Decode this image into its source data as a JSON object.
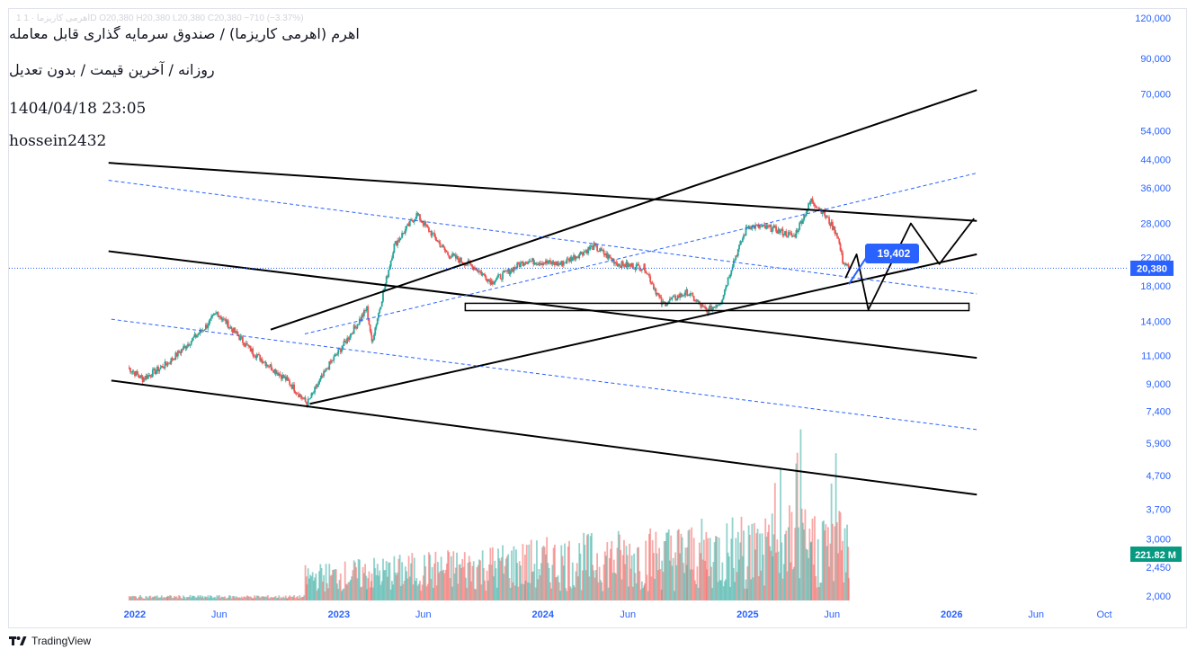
{
  "header": {
    "ticker_line": "1 اهرمی کاریزما · 1D  O20,380  H20,380  L20,380  C20,380  −710 (−3.37%)",
    "title_line1": "اهرم (اهرمی کاریزما) / صندوق سرمایه گذاری قابل معامله",
    "title_line2": "روزانه / آخرین قیمت / بدون تعدیل",
    "timestamp": "1404/04/18 23:05",
    "author": "hossein2432"
  },
  "footer": {
    "brand": "TradingView",
    "logo_icon": "tradingview-logo-icon"
  },
  "colors": {
    "axis_text": "#2962ff",
    "up_candle": "#26a69a",
    "down_candle": "#ef5350",
    "current_price_line": "#2962ff",
    "callout_bg": "#2962ff",
    "volume_badge_bg": "#089981"
  },
  "chart_data": {
    "type": "candlestick",
    "y_scale": "log",
    "ylim": [
      1900,
      125000
    ],
    "y_ticks": [
      "120,000",
      "90,000",
      "70,000",
      "54,000",
      "44,000",
      "36,000",
      "28,000",
      "22,000",
      "18,000",
      "14,000",
      "11,000",
      "9,000",
      "7,400",
      "5,900",
      "4,700",
      "3,700",
      "3,000",
      "2,450",
      "2,000"
    ],
    "x_ticks": [
      {
        "label": "2022",
        "bold": true
      },
      {
        "label": "Jun",
        "bold": false
      },
      {
        "label": "2023",
        "bold": true
      },
      {
        "label": "Jun",
        "bold": false
      },
      {
        "label": "2024",
        "bold": true
      },
      {
        "label": "Jun",
        "bold": false
      },
      {
        "label": "2025",
        "bold": true
      },
      {
        "label": "Jun",
        "bold": false
      },
      {
        "label": "2026",
        "bold": true
      },
      {
        "label": "Jun",
        "bold": false
      },
      {
        "label": "Oct",
        "bold": false
      }
    ],
    "current_price": {
      "label": "20,380",
      "value": 20380
    },
    "volume_label": "221.82 M",
    "callout": {
      "label": "19,402",
      "value": 19402
    },
    "price_path": [
      [
        "2021-12-20",
        10100
      ],
      [
        "2022-01-15",
        9300
      ],
      [
        "2022-03-01",
        10400
      ],
      [
        "2022-05-10",
        13600
      ],
      [
        "2022-05-28",
        14900
      ],
      [
        "2022-08-01",
        11200
      ],
      [
        "2022-10-01",
        9200
      ],
      [
        "2022-11-05",
        7800
      ],
      [
        "2022-12-15",
        10300
      ],
      [
        "2023-01-10",
        11900
      ],
      [
        "2023-02-20",
        15300
      ],
      [
        "2023-03-01",
        12100
      ],
      [
        "2023-04-10",
        24000
      ],
      [
        "2023-05-20",
        29800
      ],
      [
        "2023-07-15",
        22500
      ],
      [
        "2023-09-01",
        20500
      ],
      [
        "2023-10-01",
        18500
      ],
      [
        "2023-12-01",
        21500
      ],
      [
        "2024-02-01",
        21000
      ],
      [
        "2024-04-01",
        23800
      ],
      [
        "2024-05-15",
        21000
      ],
      [
        "2024-07-01",
        20500
      ],
      [
        "2024-08-01",
        15800
      ],
      [
        "2024-09-15",
        17200
      ],
      [
        "2024-10-20",
        15000
      ],
      [
        "2024-11-15",
        16200
      ],
      [
        "2024-12-05",
        21000
      ],
      [
        "2025-01-01",
        27500
      ],
      [
        "2025-02-15",
        27000
      ],
      [
        "2025-03-25",
        25500
      ],
      [
        "2025-04-25",
        33000
      ],
      [
        "2025-05-15",
        30500
      ],
      [
        "2025-06-10",
        26000
      ],
      [
        "2025-06-20",
        21500
      ],
      [
        "2025-07-01",
        20380
      ]
    ],
    "annotations": {
      "forecast_path": [
        [
          "2025-06-25",
          19000
        ],
        [
          "2025-07-15",
          22500
        ],
        [
          "2025-08-05",
          15200
        ],
        [
          "2025-10-20",
          28000
        ],
        [
          "2025-12-10",
          21000
        ],
        [
          "2026-02-10",
          29000
        ]
      ],
      "forecast_segment": [
        [
          "2025-07-01",
          18200
        ],
        [
          "2025-08-05",
          22500
        ]
      ],
      "support_box": [
        [
          "2023-08-15",
          15100
        ],
        [
          "2026-02-01",
          15900
        ]
      ],
      "trendlines_solid": [
        [
          [
            "2021-11-15",
            43000
          ],
          [
            "2026-02-15",
            28500
          ]
        ],
        [
          [
            "2021-11-15",
            23000
          ],
          [
            "2026-02-15",
            10800
          ]
        ],
        [
          [
            "2021-11-20",
            9200
          ],
          [
            "2026-02-15",
            4100
          ]
        ],
        [
          [
            "2022-11-10",
            7800
          ],
          [
            "2026-02-15",
            22500
          ]
        ],
        [
          [
            "2022-09-01",
            13200
          ],
          [
            "2026-02-15",
            72000
          ]
        ]
      ],
      "trendlines_dashed": [
        [
          [
            "2021-11-15",
            38000
          ],
          [
            "2026-02-15",
            17000
          ]
        ],
        [
          [
            "2021-11-20",
            14200
          ],
          [
            "2026-02-15",
            6500
          ]
        ],
        [
          [
            "2022-11-01",
            12800
          ],
          [
            "2026-02-15",
            40000
          ]
        ]
      ]
    }
  }
}
